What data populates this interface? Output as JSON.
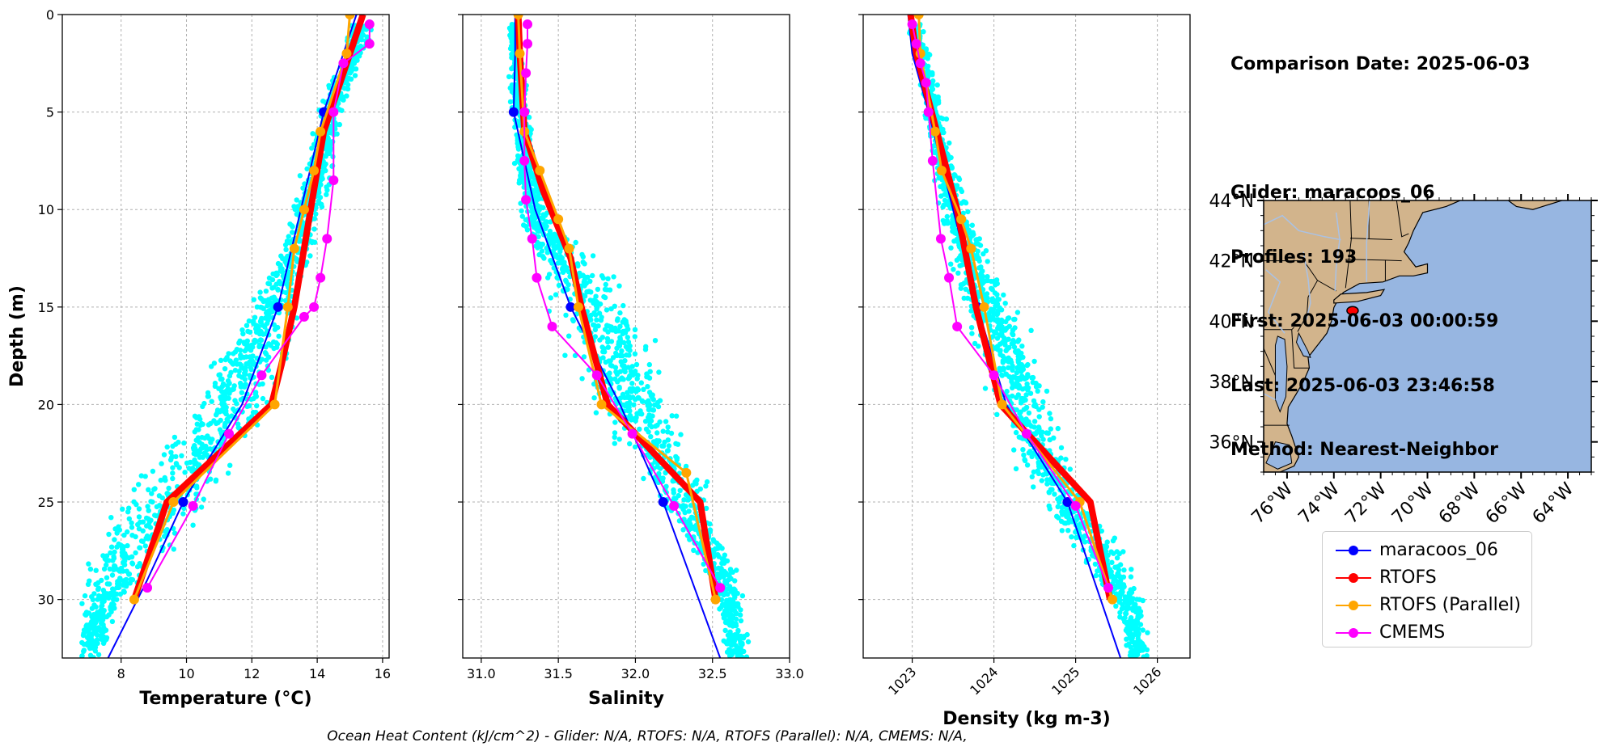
{
  "info": {
    "comparison_date": "Comparison Date: 2025-06-03",
    "glider": "Glider: maracoos_06",
    "profiles": "Profiles: 193",
    "first": "First: 2025-06-03 00:00:59",
    "last": "Last: 2025-06-03 23:46:58",
    "method": "Method: Nearest-Neighbor"
  },
  "footer": "Ocean Heat Content (kJ/cm^2) - Glider: N/A,  RTOFS: N/A,  RTOFS (Parallel): N/A,  CMEMS: N/A,",
  "colors": {
    "glider": "#0000ff",
    "rtofs": "#ff0000",
    "rtofs_parallel": "#ffa500",
    "cmems": "#ff00ff",
    "scatter": "#00ffff",
    "land": "#d2b48c",
    "ocean": "#97b6e1"
  },
  "legend": [
    {
      "label": "maracoos_06",
      "color": "#0000ff"
    },
    {
      "label": "RTOFS",
      "color": "#ff0000"
    },
    {
      "label": "RTOFS (Parallel)",
      "color": "#ffa500"
    },
    {
      "label": "CMEMS",
      "color": "#ff00ff"
    }
  ],
  "chart_data": [
    {
      "type": "line",
      "xlabel": "Temperature (°C)",
      "ylabel": "Depth (m)",
      "xlim": [
        6.2,
        16.2
      ],
      "ylim": [
        33,
        0
      ],
      "xticks": [
        8,
        10,
        12,
        14,
        16
      ],
      "xtick_labels": [
        "8",
        "10",
        "12",
        "14",
        "16"
      ],
      "yticks": [
        0,
        5,
        10,
        15,
        20,
        25,
        30
      ],
      "ytick_labels": [
        "0",
        "5",
        "10",
        "15",
        "20",
        "25",
        "30"
      ],
      "grid": true,
      "scatter_band": {
        "depth": [
          1,
          3,
          5,
          8,
          11,
          13,
          15,
          17,
          19,
          21,
          23,
          25,
          27,
          29,
          31,
          33
        ],
        "min": [
          14.8,
          14.4,
          13.9,
          13.4,
          12.9,
          12.3,
          11.7,
          11.0,
          10.2,
          9.4,
          8.5,
          7.6,
          7.0,
          6.7,
          6.5,
          6.4
        ],
        "max": [
          15.9,
          15.3,
          14.9,
          14.6,
          14.2,
          13.9,
          13.6,
          13.3,
          13.0,
          12.6,
          11.9,
          11.2,
          10.2,
          9.0,
          8.0,
          7.6
        ],
        "color": "#00ffff"
      },
      "series": [
        {
          "name": "maracoos_06",
          "color": "#0000ff",
          "width": 2,
          "marker_every": [
            5,
            15,
            25
          ],
          "x": [
            15.2,
            14.7,
            14.2,
            13.5,
            12.8,
            11.7,
            10.6,
            9.9,
            8.8,
            7.6
          ],
          "y": [
            0,
            2.5,
            5,
            10,
            15,
            20,
            23,
            25,
            29,
            33
          ]
        },
        {
          "name": "RTOFS",
          "color": "#ff0000",
          "width": 8,
          "markers": false,
          "x": [
            15.4,
            15.1,
            14.9,
            14.2,
            13.8,
            13.3,
            12.9,
            12.6,
            9.4,
            8.4
          ],
          "y": [
            0,
            1.5,
            2.5,
            6,
            10,
            15,
            18,
            20,
            25,
            30
          ]
        },
        {
          "name": "RTOFS (Parallel)",
          "color": "#ffa500",
          "width": 3,
          "markers": true,
          "x": [
            15.0,
            14.9,
            14.1,
            13.9,
            13.6,
            13.3,
            13.1,
            12.7,
            9.6,
            8.4
          ],
          "y": [
            0,
            2,
            6,
            8,
            10,
            12,
            15,
            20,
            25,
            30
          ]
        },
        {
          "name": "CMEMS",
          "color": "#ff00ff",
          "width": 2,
          "markers": true,
          "x": [
            15.6,
            15.6,
            14.8,
            14.5,
            14.5,
            14.3,
            14.1,
            13.9,
            13.6,
            12.3,
            11.3,
            10.2,
            8.8
          ],
          "y": [
            0.5,
            1.5,
            2.5,
            5,
            8.5,
            11.5,
            13.5,
            15,
            15.5,
            18.5,
            21.5,
            25.2,
            29.4
          ]
        }
      ]
    },
    {
      "type": "line",
      "xlabel": "Salinity",
      "ylabel": "",
      "xlim": [
        30.88,
        33.0
      ],
      "ylim": [
        33,
        0
      ],
      "xticks": [
        31.0,
        31.5,
        32.0,
        32.5,
        33.0
      ],
      "xtick_labels": [
        "31.0",
        "31.5",
        "32.0",
        "32.5",
        "33.0"
      ],
      "yticks": [
        0,
        5,
        10,
        15,
        20,
        25,
        30
      ],
      "grid": true,
      "scatter_band": {
        "depth": [
          1,
          3,
          5,
          8,
          11,
          13,
          15,
          17,
          19,
          21,
          23,
          25,
          27,
          29,
          31,
          33
        ],
        "min": [
          31.17,
          31.16,
          31.18,
          31.2,
          31.24,
          31.3,
          31.36,
          31.46,
          31.6,
          31.75,
          31.9,
          32.1,
          32.3,
          32.45,
          32.52,
          32.56
        ],
        "max": [
          31.25,
          31.3,
          31.33,
          31.38,
          31.5,
          31.9,
          32.1,
          32.2,
          32.25,
          32.35,
          32.45,
          32.55,
          32.62,
          32.7,
          32.74,
          32.76
        ],
        "color": "#00ffff"
      },
      "series": [
        {
          "name": "maracoos_06",
          "color": "#0000ff",
          "width": 2,
          "marker_every": [
            5,
            15,
            25
          ],
          "x": [
            31.22,
            31.22,
            31.21,
            31.35,
            31.58,
            31.9,
            32.18,
            32.55
          ],
          "y": [
            0,
            2,
            5,
            10,
            15,
            20,
            25,
            33
          ]
        },
        {
          "name": "RTOFS",
          "color": "#ff0000",
          "width": 8,
          "markers": false,
          "x": [
            31.24,
            31.25,
            31.28,
            31.4,
            31.58,
            31.65,
            31.82,
            32.42,
            32.52
          ],
          "y": [
            0,
            2,
            6,
            9,
            12.5,
            15,
            20,
            25,
            30
          ]
        },
        {
          "name": "RTOFS (Parallel)",
          "color": "#ffa500",
          "width": 3,
          "markers": true,
          "x": [
            31.24,
            31.25,
            31.28,
            31.38,
            31.5,
            31.57,
            31.63,
            31.78,
            32.33,
            32.52
          ],
          "y": [
            0,
            2,
            6,
            8,
            10.5,
            12,
            15,
            20,
            23.5,
            30
          ]
        },
        {
          "name": "CMEMS",
          "color": "#ff00ff",
          "width": 2,
          "markers": true,
          "x": [
            31.3,
            31.3,
            31.29,
            31.28,
            31.28,
            31.29,
            31.33,
            31.36,
            31.46,
            31.75,
            31.98,
            32.25,
            32.55
          ],
          "y": [
            0.5,
            1.5,
            3,
            5,
            7.5,
            9.5,
            11.5,
            13.5,
            16,
            18.5,
            21.5,
            25.2,
            29.4
          ]
        }
      ]
    },
    {
      "type": "line",
      "xlabel": "Density (kg m-3)",
      "ylabel": "",
      "xlim": [
        1022.4,
        1026.4
      ],
      "ylim": [
        33,
        0
      ],
      "xticks": [
        1023,
        1024,
        1025,
        1026
      ],
      "xtick_labels": [
        "1023",
        "1024",
        "1025",
        "1026"
      ],
      "yticks": [
        0,
        5,
        10,
        15,
        20,
        25,
        30
      ],
      "grid": true,
      "scatter_band": {
        "depth": [
          1,
          3,
          5,
          8,
          11,
          13,
          15,
          17,
          19,
          21,
          23,
          25,
          27,
          29,
          31,
          33
        ],
        "min": [
          1022.95,
          1023.05,
          1023.1,
          1023.2,
          1023.3,
          1023.4,
          1023.55,
          1023.7,
          1023.85,
          1024.0,
          1024.2,
          1024.5,
          1024.8,
          1025.2,
          1025.5,
          1025.6
        ],
        "max": [
          1023.15,
          1023.3,
          1023.4,
          1023.6,
          1023.85,
          1024.1,
          1024.35,
          1024.55,
          1024.7,
          1024.85,
          1025.1,
          1025.3,
          1025.6,
          1025.8,
          1025.9,
          1025.95
        ],
        "color": "#00ffff"
      },
      "series": [
        {
          "name": "maracoos_06",
          "color": "#0000ff",
          "width": 2,
          "marker_every": [
            5,
            15,
            25
          ],
          "x": [
            1022.95,
            1023.0,
            1023.2,
            1023.5,
            1023.8,
            1024.15,
            1024.9,
            1025.55
          ],
          "y": [
            0,
            2,
            5,
            10,
            15,
            20,
            25,
            33
          ]
        },
        {
          "name": "RTOFS",
          "color": "#ff0000",
          "width": 8,
          "markers": false,
          "x": [
            1022.98,
            1023.05,
            1023.3,
            1023.55,
            1023.78,
            1024.08,
            1025.18,
            1025.42
          ],
          "y": [
            0,
            2,
            6,
            10,
            15,
            20,
            25,
            30
          ]
        },
        {
          "name": "RTOFS (Parallel)",
          "color": "#ffa500",
          "width": 3,
          "markers": true,
          "x": [
            1023.08,
            1023.1,
            1023.28,
            1023.36,
            1023.6,
            1023.72,
            1023.88,
            1024.1,
            1025.05,
            1025.45
          ],
          "y": [
            0,
            2,
            6,
            8,
            10.5,
            12,
            15,
            20,
            25,
            30
          ]
        },
        {
          "name": "CMEMS",
          "color": "#ff00ff",
          "width": 2,
          "markers": true,
          "x": [
            1023.0,
            1023.05,
            1023.1,
            1023.17,
            1023.2,
            1023.25,
            1023.35,
            1023.45,
            1023.55,
            1024.0,
            1024.4,
            1025.0,
            1025.4
          ],
          "y": [
            0.5,
            1.5,
            2.5,
            3.5,
            5,
            7.5,
            11.5,
            13.5,
            16,
            18.5,
            21.5,
            25.2,
            29.4
          ]
        }
      ]
    }
  ],
  "map": {
    "lon_ticks": [
      "76°W",
      "74°W",
      "72°W",
      "70°W",
      "68°W",
      "66°W",
      "64°W"
    ],
    "lat_ticks": [
      "44°N",
      "42°N",
      "40°N",
      "38°N",
      "36°N"
    ],
    "marker_color": "#ff0000"
  }
}
